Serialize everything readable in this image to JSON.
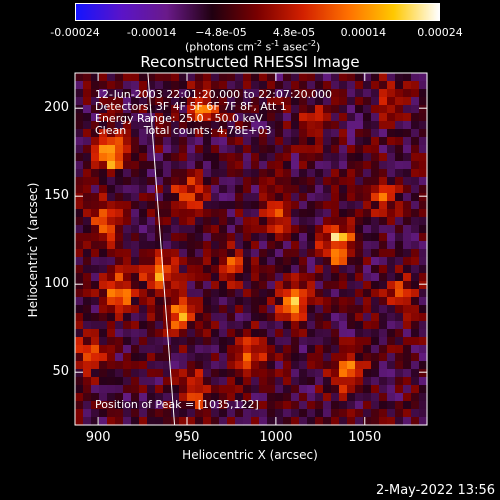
{
  "colorbar": {
    "ticks": [
      "-0.00024",
      "-0.00014",
      "−4.8e-05",
      "4.8e-05",
      "0.00014",
      "0.00024"
    ],
    "units_main": "(photons cm",
    "units_sup1": "-2",
    "units_mid1": " s",
    "units_sup2": "-1",
    "units_mid2": " asec",
    "units_sup3": "-2",
    "units_end": ")",
    "colors": [
      "#1414ff",
      "#5a14c8",
      "#6a1a8a",
      "#200010",
      "#7a0000",
      "#d22000",
      "#ff7000",
      "#ffc800",
      "#ffffff"
    ]
  },
  "chart_data": {
    "type": "heatmap",
    "title": "Reconstructed RHESSI Image",
    "xlabel": "Heliocentric X (arcsec)",
    "ylabel": "Heliocentric Y (arcsec)",
    "xlim": [
      887,
      1085
    ],
    "ylim": [
      20,
      220
    ],
    "xticks": [
      900,
      950,
      1000,
      1050
    ],
    "yticks": [
      50,
      100,
      150,
      200
    ],
    "value_range": [
      -0.00024,
      0.00024
    ],
    "limb_line": {
      "x": [
        928,
        943
      ],
      "y": [
        220,
        20
      ]
    },
    "peak_position": [
      1035,
      122
    ],
    "bright_regions": [
      {
        "x": 908,
        "y": 175,
        "v": 0.00022
      },
      {
        "x": 905,
        "y": 135,
        "v": 0.00018
      },
      {
        "x": 912,
        "y": 95,
        "v": 0.00019
      },
      {
        "x": 935,
        "y": 105,
        "v": 0.00021
      },
      {
        "x": 945,
        "y": 80,
        "v": 0.00017
      },
      {
        "x": 950,
        "y": 150,
        "v": 0.00015
      },
      {
        "x": 960,
        "y": 200,
        "v": 0.00016
      },
      {
        "x": 975,
        "y": 110,
        "v": 0.00014
      },
      {
        "x": 985,
        "y": 60,
        "v": 0.00016
      },
      {
        "x": 1000,
        "y": 140,
        "v": 0.00013
      },
      {
        "x": 1010,
        "y": 90,
        "v": 0.00018
      },
      {
        "x": 1020,
        "y": 190,
        "v": 0.00012
      },
      {
        "x": 1035,
        "y": 122,
        "v": 0.00024
      },
      {
        "x": 1040,
        "y": 50,
        "v": 0.0002
      },
      {
        "x": 1060,
        "y": 150,
        "v": 0.00014
      },
      {
        "x": 1070,
        "y": 95,
        "v": 0.00012
      },
      {
        "x": 1065,
        "y": 205,
        "v": 0.00011
      },
      {
        "x": 955,
        "y": 40,
        "v": 0.00015
      },
      {
        "x": 895,
        "y": 60,
        "v": 0.00016
      }
    ]
  },
  "info": {
    "line1": "12-Jun-2003 22:01:20.000 to 22:07:20.000",
    "line2": "Detectors: 3F 4F 5F 6F 7F 8F, Att 1",
    "line3": "Energy Range: 25.0 - 50.0 keV",
    "line4": "Clean     Total counts: 4.78E+03",
    "peak": "Position of Peak = [1035,122]"
  },
  "footer": {
    "date": "2-May-2022 13:56"
  }
}
